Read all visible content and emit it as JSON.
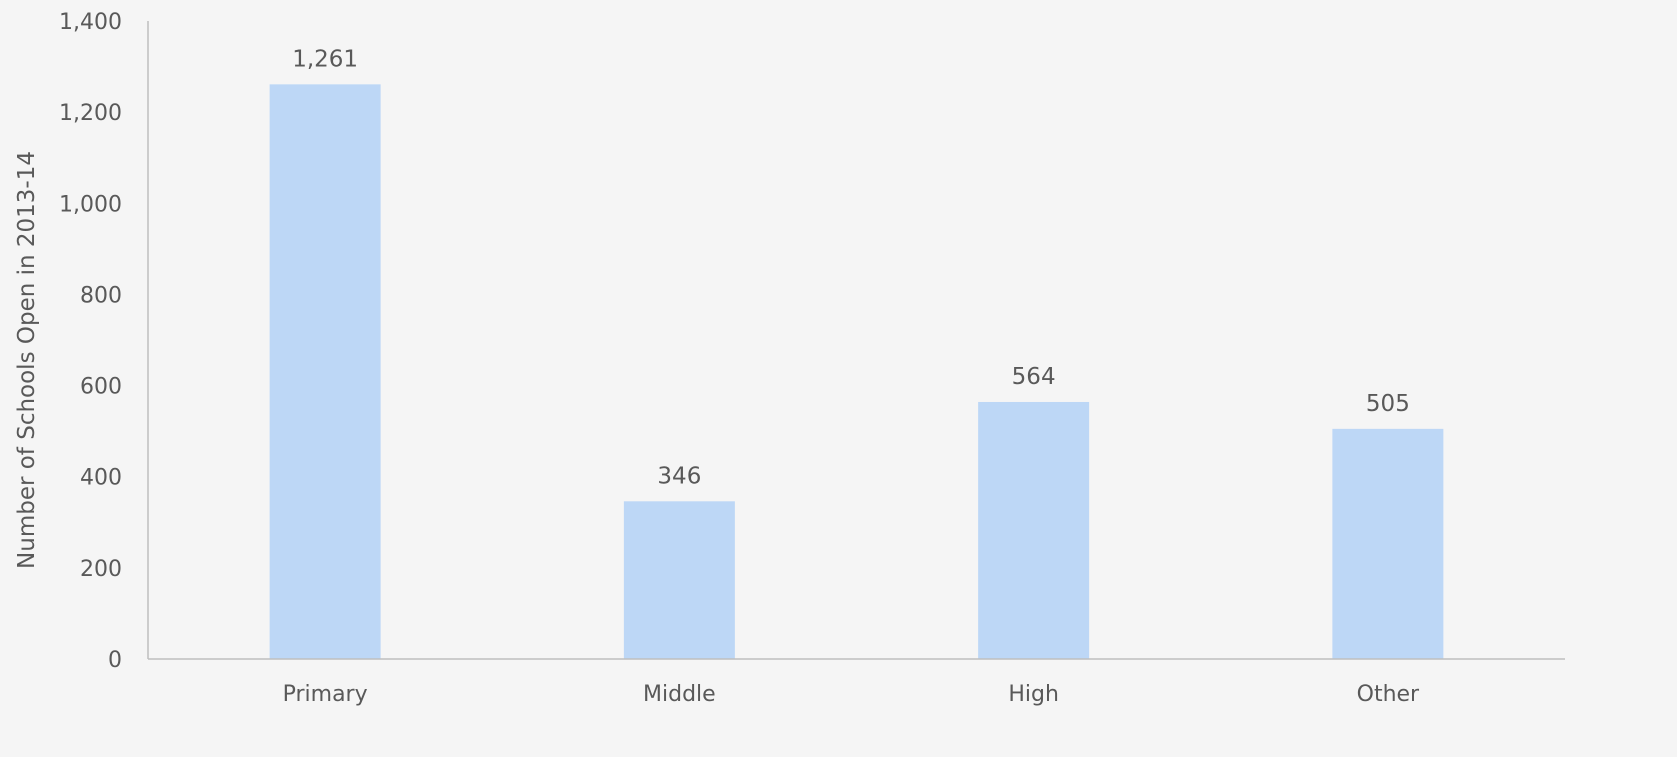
{
  "chart_data": {
    "type": "bar",
    "title": "",
    "xlabel": "",
    "ylabel": "Number of Schools Open in 2013-14",
    "categories": [
      "Primary",
      "Middle",
      "High",
      "Other"
    ],
    "values": [
      1261,
      346,
      564,
      505
    ],
    "value_labels": [
      "1,261",
      "346",
      "564",
      "505"
    ],
    "ylim": [
      0,
      1400
    ],
    "yticks": [
      0,
      200,
      400,
      600,
      800,
      1000,
      1200,
      1400
    ],
    "ytick_labels": [
      "0",
      "200",
      "400",
      "600",
      "800",
      "1,000",
      "1,200",
      "1,400"
    ],
    "grid": false,
    "legend": "none",
    "bar_color": "#bdd7f6",
    "axis_color": "#bfbfbf",
    "text_color": "#595959"
  }
}
